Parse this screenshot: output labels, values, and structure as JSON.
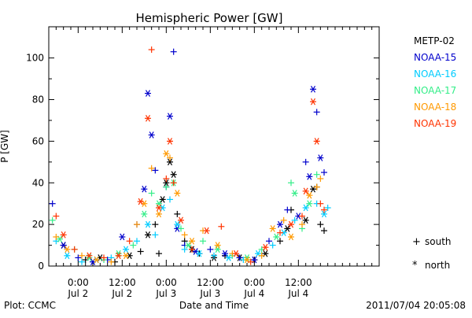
{
  "chart_data": {
    "type": "scatter",
    "title": "Hemispheric Power [GW]",
    "ylabel": "P [GW]",
    "xlabel": "Date and Time",
    "ylim": [
      0,
      115
    ],
    "xlim_hours": [
      -8,
      82
    ],
    "y_ticks": [
      0,
      20,
      40,
      60,
      80,
      100
    ],
    "x_ticks": [
      {
        "hours": 0,
        "time": "0:00",
        "date": "Jul 2"
      },
      {
        "hours": 12,
        "time": "12:00",
        "date": "Jul 2"
      },
      {
        "hours": 24,
        "time": "0:00",
        "date": "Jul 3"
      },
      {
        "hours": 36,
        "time": "12:00",
        "date": "Jul 3"
      },
      {
        "hours": 48,
        "time": "0:00",
        "date": "Jul 4"
      },
      {
        "hours": 60,
        "time": "12:00",
        "date": "Jul 4"
      }
    ],
    "series": [
      {
        "name": "METP-02",
        "color": "#000000",
        "points": [
          [
            -4,
            10,
            "n"
          ],
          [
            2,
            3,
            "p"
          ],
          [
            6,
            4,
            "n"
          ],
          [
            10,
            2,
            "p"
          ],
          [
            14,
            5,
            "n"
          ],
          [
            17,
            7,
            "p"
          ],
          [
            19,
            15,
            "n"
          ],
          [
            21,
            20,
            "p"
          ],
          [
            23,
            32,
            "n"
          ],
          [
            24,
            40,
            "n"
          ],
          [
            25,
            50,
            "n"
          ],
          [
            26,
            44,
            "n"
          ],
          [
            27,
            25,
            "p"
          ],
          [
            29,
            12,
            "p"
          ],
          [
            31,
            8,
            "n"
          ],
          [
            33,
            6,
            "p"
          ],
          [
            37,
            4,
            "n"
          ],
          [
            40,
            5,
            "p"
          ],
          [
            44,
            4,
            "n"
          ],
          [
            48,
            3,
            "p"
          ],
          [
            51,
            6,
            "n"
          ],
          [
            55,
            12,
            "p"
          ],
          [
            57,
            18,
            "n"
          ],
          [
            58,
            27,
            "p"
          ],
          [
            62,
            22,
            "n"
          ],
          [
            64,
            37,
            "n"
          ],
          [
            65,
            38,
            "p"
          ],
          [
            66,
            20,
            "p"
          ],
          [
            67,
            17,
            "p"
          ],
          [
            22,
            6,
            "p"
          ]
        ]
      },
      {
        "name": "NOAA-15",
        "color": "#0000cc",
        "points": [
          [
            -7,
            30,
            "p"
          ],
          [
            -4,
            10,
            "n"
          ],
          [
            0,
            4,
            "p"
          ],
          [
            4,
            2,
            "n"
          ],
          [
            8,
            3,
            "p"
          ],
          [
            12,
            14,
            "n"
          ],
          [
            16,
            20,
            "p"
          ],
          [
            18,
            37,
            "n"
          ],
          [
            19,
            83,
            "n"
          ],
          [
            20,
            63,
            "n"
          ],
          [
            21,
            46,
            "p"
          ],
          [
            24,
            38,
            "p"
          ],
          [
            25,
            72,
            "n"
          ],
          [
            26,
            103,
            "p"
          ],
          [
            27,
            18,
            "n"
          ],
          [
            29,
            10,
            "p"
          ],
          [
            32,
            7,
            "n"
          ],
          [
            36,
            8,
            "p"
          ],
          [
            40,
            6,
            "n"
          ],
          [
            44,
            4,
            "p"
          ],
          [
            48,
            3,
            "n"
          ],
          [
            52,
            12,
            "p"
          ],
          [
            55,
            20,
            "n"
          ],
          [
            57,
            27,
            "p"
          ],
          [
            60,
            24,
            "n"
          ],
          [
            62,
            50,
            "p"
          ],
          [
            63,
            43,
            "n"
          ],
          [
            64,
            85,
            "n"
          ],
          [
            65,
            74,
            "p"
          ],
          [
            66,
            52,
            "n"
          ],
          [
            67,
            45,
            "p"
          ]
        ]
      },
      {
        "name": "NOAA-16",
        "color": "#00ccff",
        "points": [
          [
            -6,
            12,
            "p"
          ],
          [
            -3,
            5,
            "n"
          ],
          [
            1,
            2,
            "p"
          ],
          [
            5,
            3,
            "n"
          ],
          [
            9,
            4,
            "p"
          ],
          [
            13,
            8,
            "n"
          ],
          [
            16,
            12,
            "p"
          ],
          [
            19,
            20,
            "n"
          ],
          [
            21,
            15,
            "p"
          ],
          [
            23,
            28,
            "n"
          ],
          [
            25,
            32,
            "p"
          ],
          [
            27,
            20,
            "n"
          ],
          [
            29,
            8,
            "p"
          ],
          [
            33,
            6,
            "n"
          ],
          [
            37,
            5,
            "p"
          ],
          [
            41,
            4,
            "n"
          ],
          [
            45,
            3,
            "p"
          ],
          [
            49,
            6,
            "n"
          ],
          [
            53,
            10,
            "p"
          ],
          [
            56,
            16,
            "n"
          ],
          [
            59,
            22,
            "p"
          ],
          [
            62,
            28,
            "n"
          ],
          [
            65,
            30,
            "p"
          ],
          [
            67,
            25,
            "n"
          ],
          [
            68,
            28,
            "p"
          ]
        ]
      },
      {
        "name": "NOAA-17",
        "color": "#33ee88",
        "points": [
          [
            -7,
            22,
            "p"
          ],
          [
            -5,
            13,
            "n"
          ],
          [
            -1,
            8,
            "p"
          ],
          [
            3,
            4,
            "n"
          ],
          [
            7,
            3,
            "p"
          ],
          [
            11,
            6,
            "n"
          ],
          [
            15,
            10,
            "p"
          ],
          [
            18,
            25,
            "n"
          ],
          [
            20,
            35,
            "p"
          ],
          [
            22,
            30,
            "n"
          ],
          [
            24,
            38,
            "p"
          ],
          [
            26,
            40,
            "n"
          ],
          [
            28,
            18,
            "p"
          ],
          [
            30,
            10,
            "n"
          ],
          [
            34,
            12,
            "p"
          ],
          [
            38,
            8,
            "n"
          ],
          [
            42,
            5,
            "p"
          ],
          [
            46,
            4,
            "n"
          ],
          [
            50,
            8,
            "p"
          ],
          [
            54,
            14,
            "n"
          ],
          [
            58,
            40,
            "p"
          ],
          [
            59,
            35,
            "n"
          ],
          [
            61,
            18,
            "p"
          ],
          [
            63,
            30,
            "n"
          ],
          [
            65,
            44,
            "p"
          ]
        ]
      },
      {
        "name": "NOAA-18",
        "color": "#ff9900",
        "points": [
          [
            -6,
            14,
            "p"
          ],
          [
            -3,
            8,
            "n"
          ],
          [
            1,
            5,
            "p"
          ],
          [
            5,
            3,
            "n"
          ],
          [
            9,
            2,
            "p"
          ],
          [
            13,
            5,
            "n"
          ],
          [
            16,
            20,
            "p"
          ],
          [
            18,
            30,
            "n"
          ],
          [
            20,
            47,
            "p"
          ],
          [
            22,
            25,
            "n"
          ],
          [
            24,
            54,
            "n"
          ],
          [
            25,
            52,
            "p"
          ],
          [
            27,
            35,
            "n"
          ],
          [
            29,
            15,
            "p"
          ],
          [
            31,
            12,
            "n"
          ],
          [
            34,
            17,
            "p"
          ],
          [
            38,
            10,
            "n"
          ],
          [
            42,
            6,
            "p"
          ],
          [
            46,
            3,
            "n"
          ],
          [
            50,
            5,
            "p"
          ],
          [
            53,
            18,
            "n"
          ],
          [
            56,
            22,
            "p"
          ],
          [
            58,
            14,
            "n"
          ],
          [
            61,
            20,
            "p"
          ],
          [
            63,
            34,
            "n"
          ],
          [
            65,
            38,
            "p"
          ],
          [
            66,
            42,
            "p"
          ]
        ]
      },
      {
        "name": "NOAA-19",
        "color": "#ff3300",
        "points": [
          [
            -6,
            24,
            "p"
          ],
          [
            -4,
            15,
            "n"
          ],
          [
            -1,
            8,
            "p"
          ],
          [
            3,
            5,
            "n"
          ],
          [
            7,
            4,
            "p"
          ],
          [
            11,
            5,
            "n"
          ],
          [
            14,
            12,
            "p"
          ],
          [
            17,
            31,
            "n"
          ],
          [
            19,
            71,
            "n"
          ],
          [
            20,
            104,
            "p"
          ],
          [
            22,
            28,
            "n"
          ],
          [
            24,
            42,
            "p"
          ],
          [
            25,
            60,
            "n"
          ],
          [
            26,
            40,
            "p"
          ],
          [
            28,
            22,
            "n"
          ],
          [
            31,
            8,
            "p"
          ],
          [
            35,
            17,
            "n"
          ],
          [
            39,
            19,
            "p"
          ],
          [
            43,
            6,
            "n"
          ],
          [
            47,
            2,
            "p"
          ],
          [
            51,
            9,
            "n"
          ],
          [
            55,
            16,
            "p"
          ],
          [
            58,
            20,
            "n"
          ],
          [
            61,
            24,
            "p"
          ],
          [
            62,
            36,
            "n"
          ],
          [
            64,
            79,
            "n"
          ],
          [
            65,
            60,
            "n"
          ],
          [
            66,
            30,
            "p"
          ],
          [
            67,
            27,
            "p"
          ]
        ]
      }
    ],
    "legend": {
      "placement": "right",
      "entries": [
        "METP-02",
        "NOAA-15",
        "NOAA-16",
        "NOAA-17",
        "NOAA-18",
        "NOAA-19"
      ],
      "markers": [
        {
          "symbol": "+",
          "label": "south"
        },
        {
          "symbol": "*",
          "label": "north"
        }
      ]
    }
  },
  "footer": {
    "left": "Plot: CCMC",
    "right": "2011/07/04 20:05:08"
  }
}
